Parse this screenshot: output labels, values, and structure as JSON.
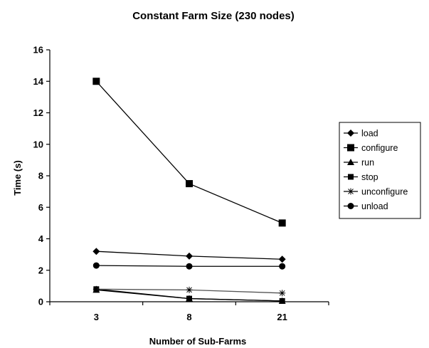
{
  "chart_data": {
    "type": "line",
    "title": "Constant Farm Size (230 nodes)",
    "xlabel": "Number of Sub-Farms",
    "ylabel": "Time (s)",
    "categories": [
      "3",
      "8",
      "21"
    ],
    "ylim": [
      0,
      16
    ],
    "yticks": [
      0,
      2,
      4,
      6,
      8,
      10,
      12,
      14,
      16
    ],
    "grid": false,
    "legend_position": "right",
    "series": [
      {
        "name": "load",
        "marker": "diamond",
        "values": [
          3.2,
          2.9,
          2.7
        ]
      },
      {
        "name": "configure",
        "marker": "square",
        "values": [
          14.0,
          7.5,
          5.0
        ]
      },
      {
        "name": "run",
        "marker": "triangle",
        "values": [
          0.75,
          0.2,
          0.05
        ]
      },
      {
        "name": "stop",
        "marker": "small-square",
        "values": [
          0.8,
          0.2,
          0.05
        ]
      },
      {
        "name": "unconfigure",
        "marker": "star",
        "values": [
          0.8,
          0.75,
          0.55
        ]
      },
      {
        "name": "unload",
        "marker": "circle",
        "values": [
          2.3,
          2.25,
          2.25
        ]
      }
    ]
  }
}
